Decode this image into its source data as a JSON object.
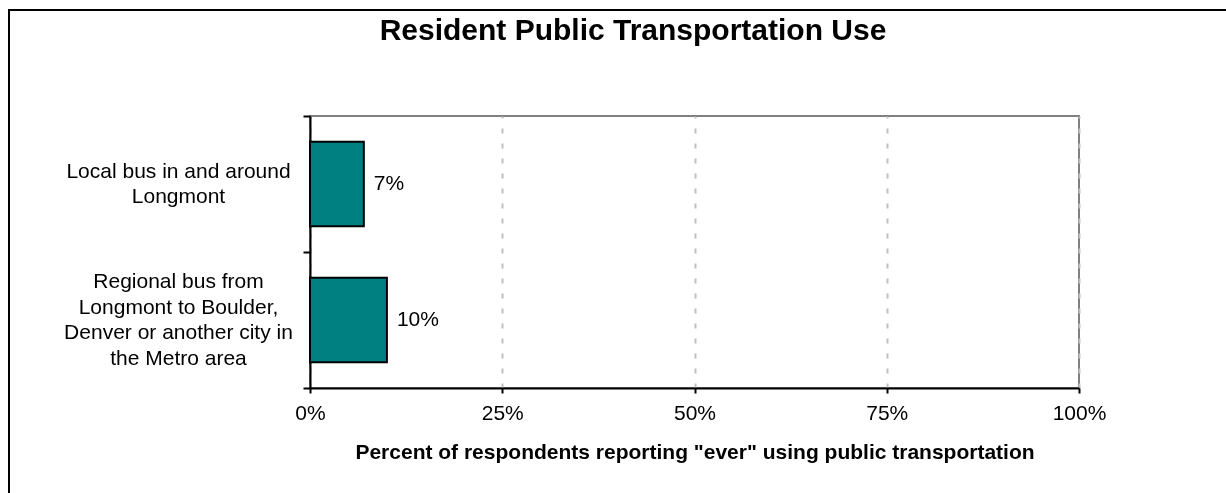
{
  "chart_data": {
    "type": "bar",
    "orientation": "horizontal",
    "title": "Resident Public Transportation Use",
    "xlabel": "Percent of respondents reporting \"ever\" using public transportation",
    "categories": [
      "Local bus in and around Longmont",
      "Regional bus from Longmont to Boulder, Denver or another city in the Metro area"
    ],
    "values": [
      7,
      10
    ],
    "value_labels": [
      "7%",
      "10%"
    ],
    "color": "#008080",
    "xlim": [
      0,
      100
    ],
    "xticks": [
      {
        "value": 0,
        "label": "0%"
      },
      {
        "value": 25,
        "label": "25%"
      },
      {
        "value": 50,
        "label": "50%"
      },
      {
        "value": 75,
        "label": "75%"
      },
      {
        "value": 100,
        "label": "100%"
      }
    ],
    "grid": "x"
  }
}
